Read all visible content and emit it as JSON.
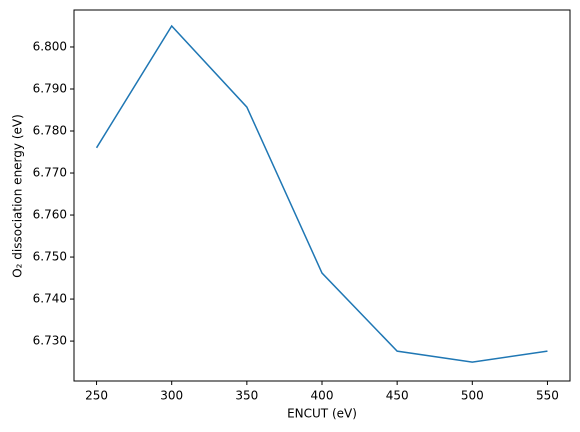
{
  "chart_data": {
    "type": "line",
    "xlabel": "ENCUT (eV)",
    "ylabel": "O₂ dissociation energy (eV)",
    "x": [
      250,
      300,
      350,
      400,
      450,
      500,
      550
    ],
    "values": [
      6.776,
      6.805,
      6.7857,
      6.7462,
      6.7276,
      6.725,
      6.7276
    ],
    "color": "#1f77b4",
    "xlim": [
      235,
      565
    ],
    "ylim": [
      6.7205,
      6.8088
    ],
    "xticks": [
      250,
      300,
      350,
      400,
      450,
      500,
      550
    ],
    "yticks": [
      {
        "value": 6.73,
        "label": "6.730"
      },
      {
        "value": 6.74,
        "label": "6.740"
      },
      {
        "value": 6.75,
        "label": "6.750"
      },
      {
        "value": 6.76,
        "label": "6.760"
      },
      {
        "value": 6.77,
        "label": "6.770"
      },
      {
        "value": 6.78,
        "label": "6.780"
      },
      {
        "value": 6.79,
        "label": "6.790"
      },
      {
        "value": 6.8,
        "label": "6.800"
      }
    ],
    "grid": false
  }
}
